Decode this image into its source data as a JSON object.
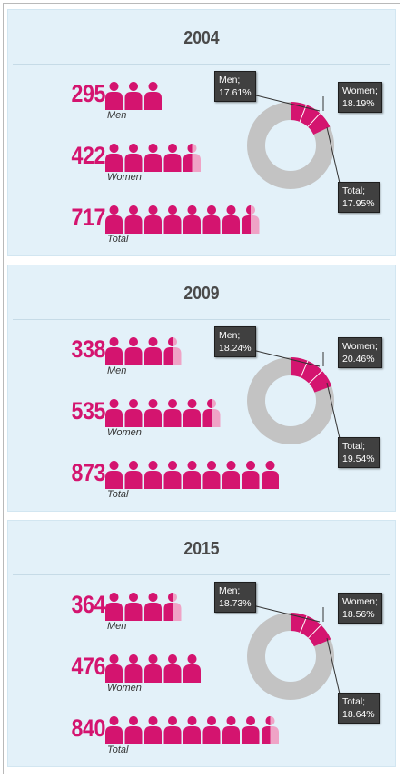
{
  "colors": {
    "accent": "#d4146f",
    "accent_light": "#efa3c6",
    "ring": "#c3c3c3",
    "panel": "#e3f1f9"
  },
  "chart_data": [
    {
      "type": "pie",
      "title": "2004",
      "rows": [
        {
          "value": 295,
          "label": "Men",
          "icons": 3
        },
        {
          "value": 422,
          "label": "Women",
          "icons": 4.5
        },
        {
          "value": 717,
          "label": "Total",
          "icons": 7.5
        }
      ],
      "callouts": {
        "men": {
          "name": "Men;",
          "pct": "17.61%"
        },
        "women": {
          "name": "Women;",
          "pct": "18.19%"
        },
        "total": {
          "name": "Total;",
          "pct": "17.95%"
        }
      },
      "share_percent": 17.95
    },
    {
      "type": "pie",
      "title": "2009",
      "rows": [
        {
          "value": 338,
          "label": "Men",
          "icons": 3.5
        },
        {
          "value": 535,
          "label": "Women",
          "icons": 5.5
        },
        {
          "value": 873,
          "label": "Total",
          "icons": 9
        }
      ],
      "callouts": {
        "men": {
          "name": "Men;",
          "pct": "18.24%"
        },
        "women": {
          "name": "Women;",
          "pct": "20.46%"
        },
        "total": {
          "name": "Total;",
          "pct": "19.54%"
        }
      },
      "share_percent": 19.54
    },
    {
      "type": "pie",
      "title": "2015",
      "rows": [
        {
          "value": 364,
          "label": "Men",
          "icons": 3.5
        },
        {
          "value": 476,
          "label": "Women",
          "icons": 5
        },
        {
          "value": 840,
          "label": "Total",
          "icons": 8.5
        }
      ],
      "callouts": {
        "men": {
          "name": "Men;",
          "pct": "18.73%"
        },
        "women": {
          "name": "Women;",
          "pct": "18.56%"
        },
        "total": {
          "name": "Total;",
          "pct": "18.64%"
        }
      },
      "share_percent": 18.64
    }
  ]
}
